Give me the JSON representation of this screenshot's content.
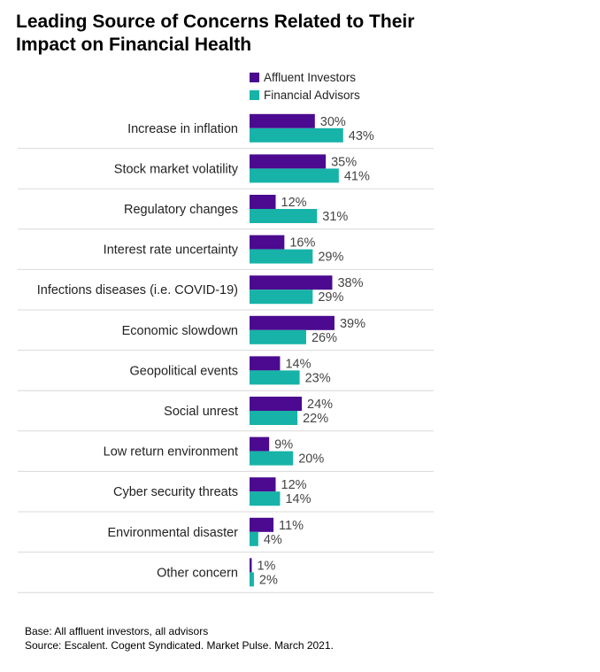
{
  "chart_data": {
    "type": "bar",
    "orientation": "horizontal",
    "title_lines": [
      "Leading Source of Concerns Related to Their",
      "Impact on Financial Health"
    ],
    "categories": [
      "Increase in inflation",
      "Stock market volatility",
      "Regulatory changes",
      "Interest rate uncertainty",
      "Infections diseases (i.e. COVID-19)",
      "Economic slowdown",
      "Geopolitical events",
      "Social unrest",
      "Low return environment",
      "Cyber security threats",
      "Environmental disaster",
      "Other concern"
    ],
    "series": [
      {
        "name": "Affluent Investors",
        "color": "#4b0a8f",
        "values": [
          30,
          35,
          12,
          16,
          38,
          39,
          14,
          24,
          9,
          12,
          11,
          1
        ]
      },
      {
        "name": "Financial Advisors",
        "color": "#17b3a8",
        "values": [
          43,
          41,
          31,
          29,
          29,
          26,
          23,
          22,
          20,
          14,
          4,
          2
        ]
      }
    ],
    "value_suffix": "%",
    "xlim": [
      0,
      100
    ],
    "legend_position": "top",
    "grid": false
  },
  "footnote": {
    "base": "Base: All affluent investors, all advisors",
    "source": "Source: Escalent. Cogent Syndicated. Market Pulse. March 2021."
  }
}
